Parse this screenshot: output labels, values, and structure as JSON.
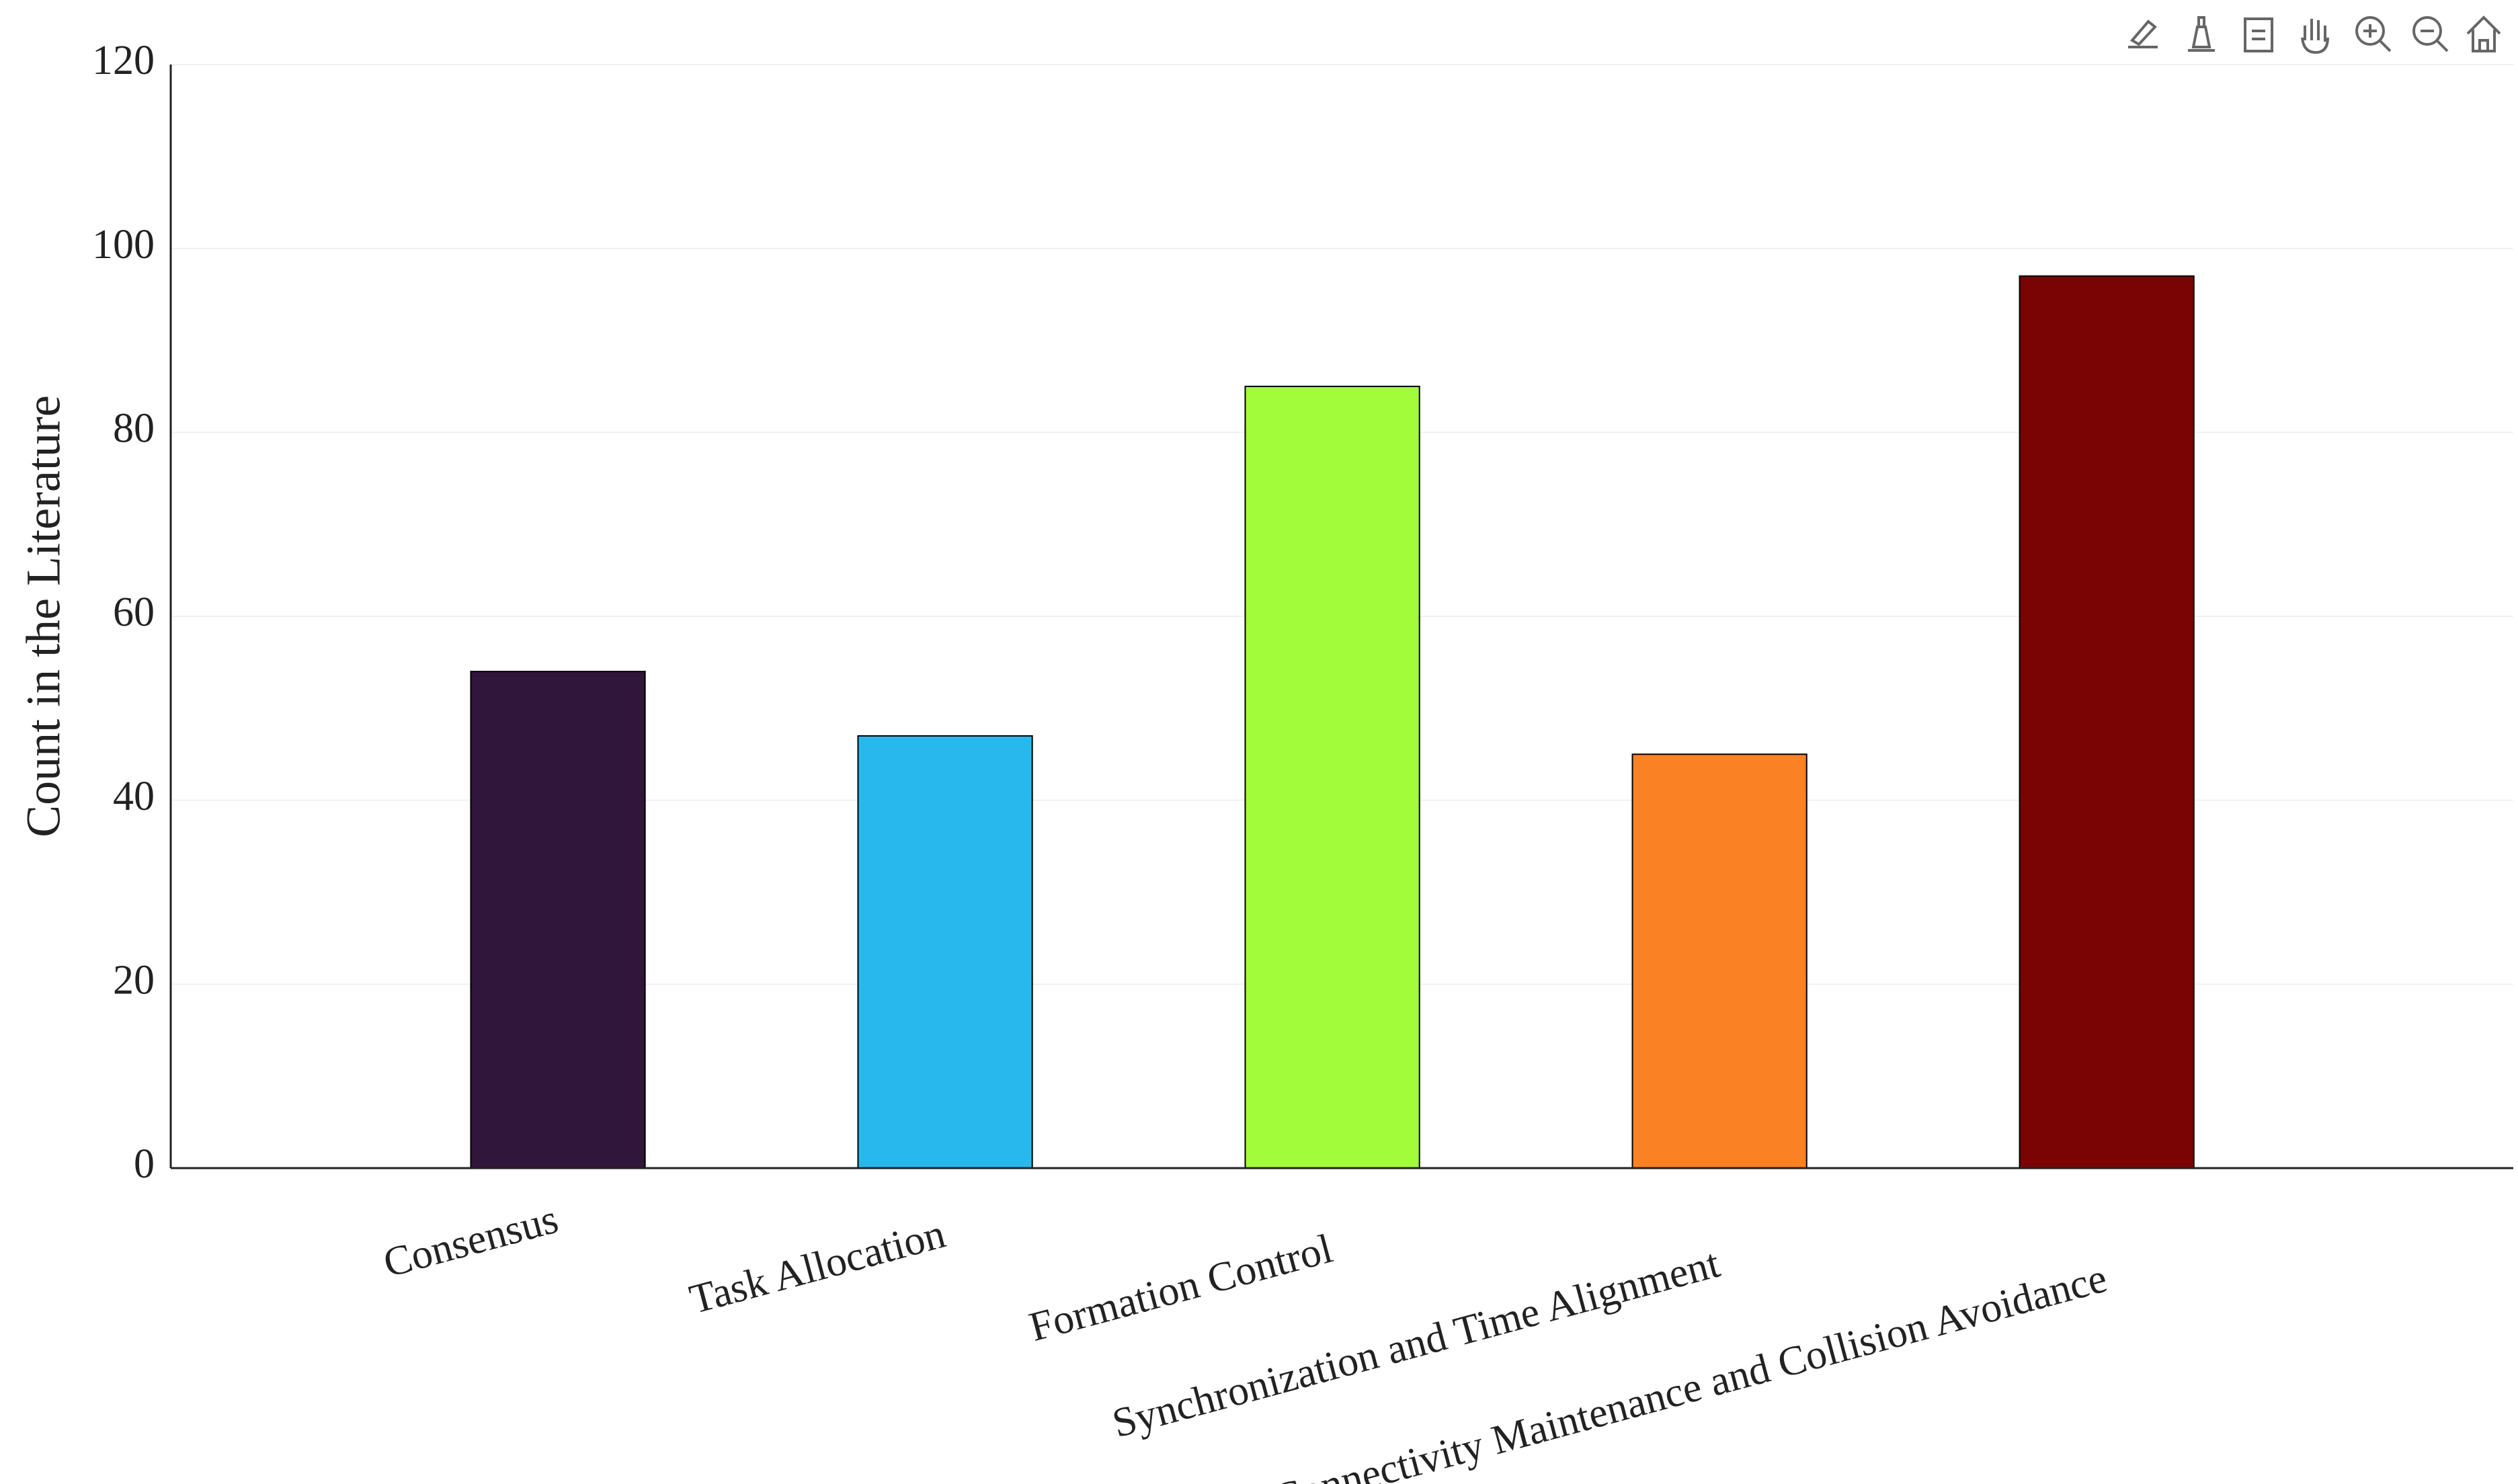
{
  "chart_data": {
    "type": "bar",
    "y_label": "Count in the Literature",
    "categories": [
      "Consensus",
      "Task Allocation",
      "Formation Control",
      "Synchronization and Time Alignment",
      "Connectivity Maintenance and Collision Avoidance"
    ],
    "values": [
      54,
      47,
      85,
      45,
      97
    ],
    "colors": [
      "#30163a",
      "#29b8ed",
      "#a3fc3a",
      "#fa8224",
      "#7a0403"
    ],
    "ylim": [
      0,
      120
    ],
    "yticks": [
      0,
      20,
      40,
      60,
      80,
      100,
      120
    ],
    "grid": true
  }
}
